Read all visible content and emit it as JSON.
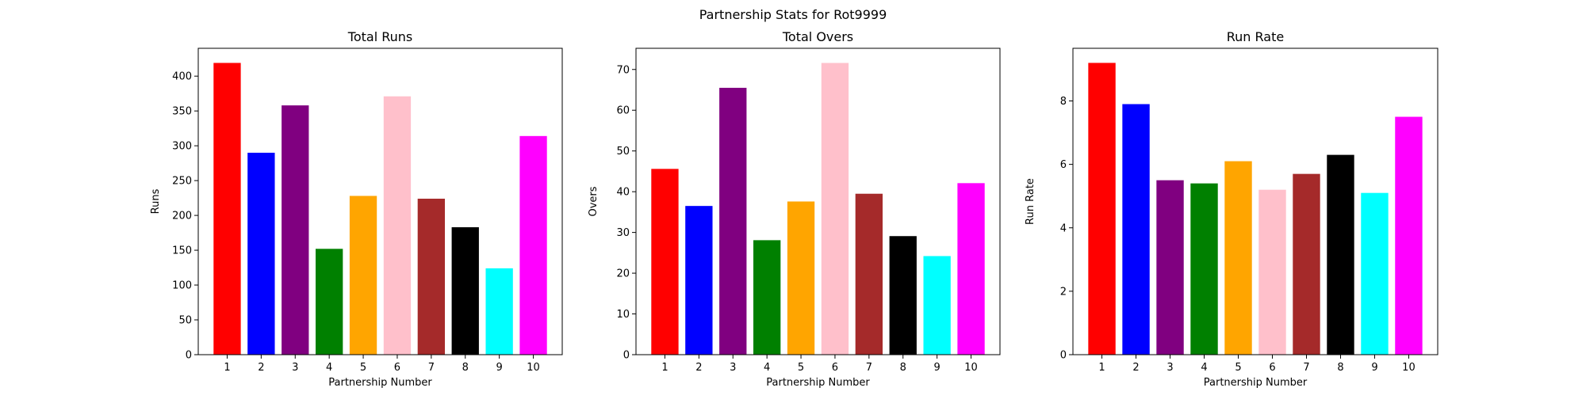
{
  "figure": {
    "suptitle": "Partnership Stats for Rot9999"
  },
  "colors": [
    "#ff0000",
    "#0000ff",
    "#800080",
    "#008000",
    "#ffa500",
    "#ffc0cb",
    "#a52a2a",
    "#000000",
    "#00ffff",
    "#ff00ff"
  ],
  "chart_data": [
    {
      "type": "bar",
      "title": "Total Runs",
      "xlabel": "Partnership Number",
      "ylabel": "Runs",
      "categories": [
        "1",
        "2",
        "3",
        "4",
        "5",
        "6",
        "7",
        "8",
        "9",
        "10"
      ],
      "values": [
        419,
        290,
        358,
        152,
        228,
        371,
        224,
        183,
        124,
        314
      ],
      "ylim": [
        0,
        440
      ],
      "yticks": [
        0,
        50,
        100,
        150,
        200,
        250,
        300,
        350,
        400
      ],
      "grid": false
    },
    {
      "type": "bar",
      "title": "Total Overs",
      "xlabel": "Partnership Number",
      "ylabel": "Overs",
      "categories": [
        "1",
        "2",
        "3",
        "4",
        "5",
        "6",
        "7",
        "8",
        "9",
        "10"
      ],
      "values": [
        45.6,
        36.5,
        65.5,
        28.1,
        37.6,
        71.6,
        39.5,
        29.1,
        24.2,
        42.1
      ],
      "ylim": [
        0,
        75.2
      ],
      "yticks": [
        0,
        10,
        20,
        30,
        40,
        50,
        60,
        70
      ],
      "grid": false
    },
    {
      "type": "bar",
      "title": "Run Rate",
      "xlabel": "Partnership Number",
      "ylabel": "Run Rate",
      "categories": [
        "1",
        "2",
        "3",
        "4",
        "5",
        "6",
        "7",
        "8",
        "9",
        "10"
      ],
      "values": [
        9.2,
        7.9,
        5.5,
        5.4,
        6.1,
        5.2,
        5.7,
        6.3,
        5.1,
        7.5
      ],
      "ylim": [
        0,
        9.66
      ],
      "yticks": [
        0,
        2,
        4,
        6,
        8
      ],
      "grid": false
    }
  ]
}
